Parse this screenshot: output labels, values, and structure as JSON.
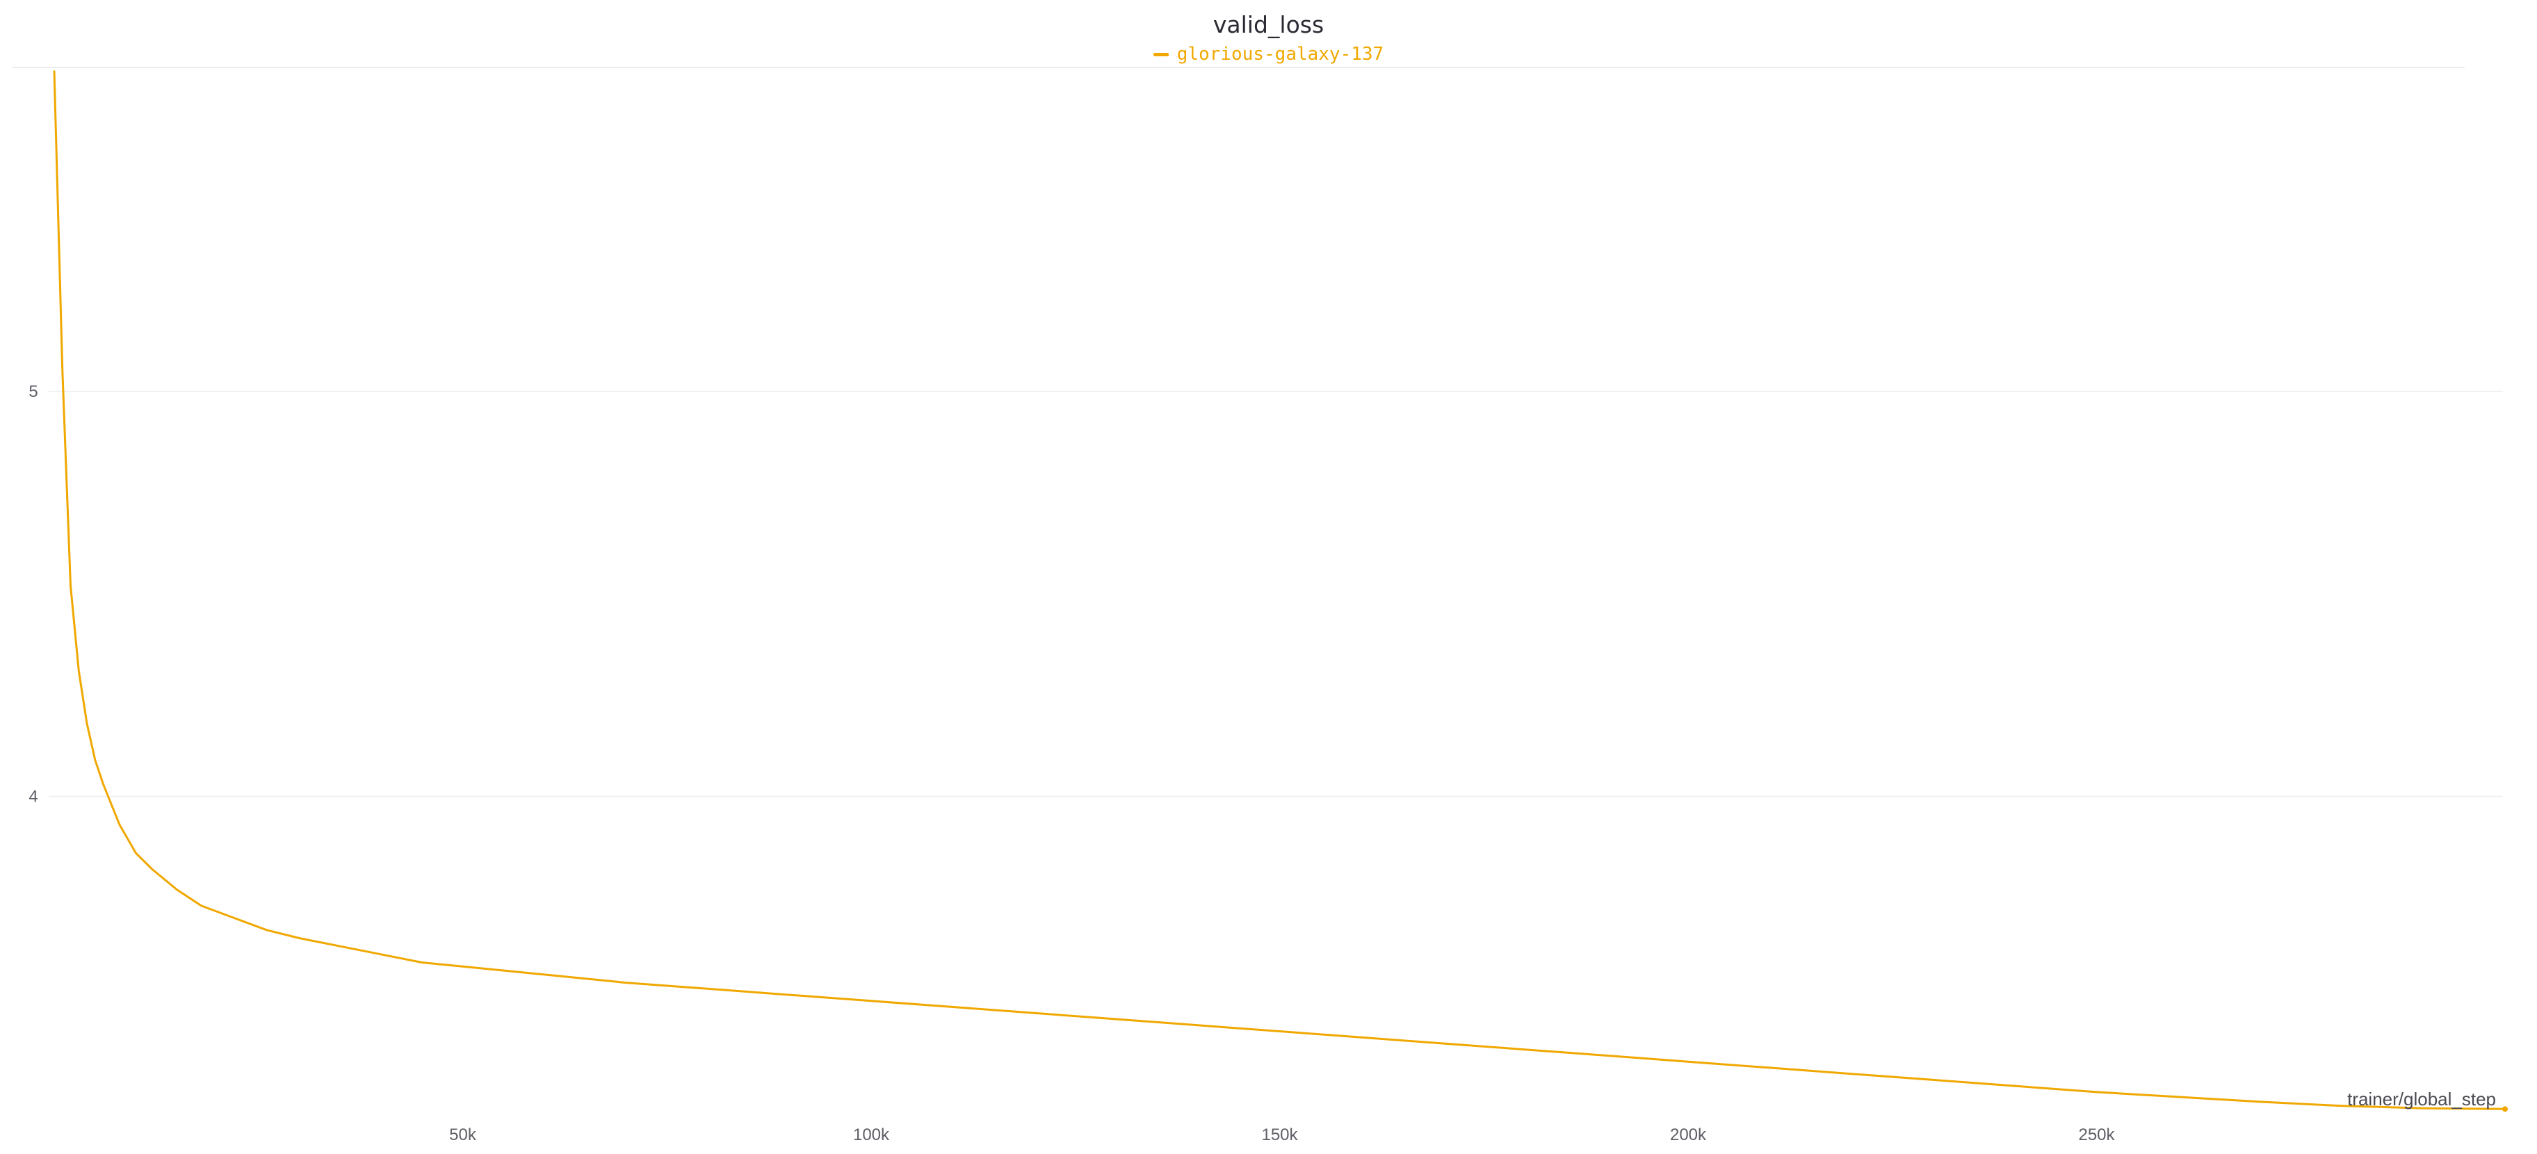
{
  "chart_data": {
    "type": "line",
    "title": "valid_loss",
    "xlabel": "trainer/global_step",
    "ylabel": "",
    "xlim": [
      0,
      300000
    ],
    "ylim": [
      3.22,
      5.8
    ],
    "x_ticks": [
      50000,
      100000,
      150000,
      200000,
      250000
    ],
    "x_tick_labels": [
      "50k",
      "100k",
      "150k",
      "200k",
      "250k"
    ],
    "y_ticks": [
      4,
      5
    ],
    "y_tick_labels": [
      "4",
      "5"
    ],
    "grid": true,
    "legend_placement": "top-center",
    "series": [
      {
        "name": "glorious-galaxy-137",
        "color": "#f0a800",
        "x": [
          0,
          1000,
          2000,
          3000,
          4000,
          5000,
          6000,
          8000,
          10000,
          12000,
          15000,
          18000,
          22000,
          26000,
          30000,
          35000,
          40000,
          45000,
          50000,
          60000,
          70000,
          80000,
          90000,
          100000,
          110000,
          120000,
          130000,
          140000,
          150000,
          160000,
          170000,
          180000,
          190000,
          200000,
          210000,
          220000,
          230000,
          240000,
          250000,
          260000,
          270000,
          280000,
          290000,
          300000
        ],
        "y": [
          5.79,
          5.05,
          4.52,
          4.31,
          4.18,
          4.09,
          4.03,
          3.93,
          3.86,
          3.82,
          3.77,
          3.73,
          3.7,
          3.67,
          3.65,
          3.63,
          3.61,
          3.59,
          3.58,
          3.56,
          3.54,
          3.525,
          3.51,
          3.495,
          3.48,
          3.465,
          3.45,
          3.435,
          3.42,
          3.405,
          3.39,
          3.375,
          3.36,
          3.345,
          3.33,
          3.315,
          3.3,
          3.285,
          3.27,
          3.258,
          3.246,
          3.236,
          3.23,
          3.228
        ]
      }
    ]
  }
}
